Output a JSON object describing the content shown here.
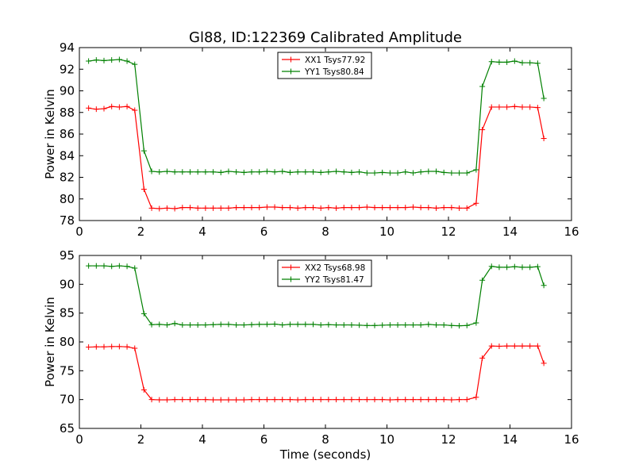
{
  "figure": {
    "title": "Gl88, ID:122369 Calibrated Amplitude",
    "xlabel": "Time (seconds)"
  },
  "chart_data": [
    {
      "type": "line",
      "ylabel": "Power in Kelvin",
      "xlim": [
        0,
        16
      ],
      "ylim": [
        78,
        94
      ],
      "xticks": [
        0,
        2,
        4,
        6,
        8,
        10,
        12,
        14,
        16
      ],
      "yticks": [
        78,
        80,
        82,
        84,
        86,
        88,
        90,
        92,
        94
      ],
      "grid": false,
      "legend": "top-center",
      "x": [
        0.3,
        0.55,
        0.8,
        1.05,
        1.3,
        1.55,
        1.8,
        2.1,
        2.35,
        2.6,
        2.85,
        3.1,
        3.35,
        3.6,
        3.85,
        4.1,
        4.35,
        4.6,
        4.85,
        5.1,
        5.35,
        5.6,
        5.85,
        6.1,
        6.35,
        6.6,
        6.85,
        7.1,
        7.35,
        7.6,
        7.85,
        8.1,
        8.35,
        8.6,
        8.85,
        9.1,
        9.35,
        9.6,
        9.85,
        10.1,
        10.35,
        10.6,
        10.85,
        11.1,
        11.35,
        11.6,
        11.85,
        12.1,
        12.35,
        12.6,
        12.9,
        13.1,
        13.4,
        13.65,
        13.9,
        14.15,
        14.4,
        14.65,
        14.9,
        15.1
      ],
      "series": [
        {
          "name": "XX1 Tsys77.92",
          "color": "#ff0000",
          "values": [
            88.4,
            88.3,
            88.35,
            88.55,
            88.5,
            88.55,
            88.2,
            80.9,
            79.15,
            79.1,
            79.15,
            79.1,
            79.2,
            79.2,
            79.15,
            79.15,
            79.15,
            79.15,
            79.15,
            79.2,
            79.2,
            79.2,
            79.2,
            79.25,
            79.25,
            79.2,
            79.2,
            79.15,
            79.2,
            79.2,
            79.15,
            79.2,
            79.15,
            79.2,
            79.2,
            79.2,
            79.25,
            79.2,
            79.2,
            79.2,
            79.2,
            79.2,
            79.25,
            79.2,
            79.2,
            79.15,
            79.2,
            79.2,
            79.15,
            79.15,
            79.6,
            86.4,
            88.5,
            88.5,
            88.5,
            88.55,
            88.5,
            88.5,
            88.45,
            85.6
          ]
        },
        {
          "name": "YY1 Tsys80.84",
          "color": "#008000",
          "values": [
            92.75,
            92.85,
            92.8,
            92.85,
            92.9,
            92.75,
            92.45,
            84.45,
            82.55,
            82.5,
            82.55,
            82.5,
            82.5,
            82.5,
            82.5,
            82.5,
            82.5,
            82.45,
            82.55,
            82.5,
            82.45,
            82.5,
            82.5,
            82.55,
            82.5,
            82.55,
            82.45,
            82.5,
            82.5,
            82.5,
            82.45,
            82.5,
            82.55,
            82.5,
            82.45,
            82.5,
            82.4,
            82.4,
            82.45,
            82.4,
            82.4,
            82.5,
            82.4,
            82.5,
            82.55,
            82.55,
            82.45,
            82.4,
            82.4,
            82.4,
            82.7,
            90.4,
            92.7,
            92.65,
            92.65,
            92.75,
            92.6,
            92.6,
            92.55,
            89.3
          ]
        }
      ]
    },
    {
      "type": "line",
      "ylabel": "Power in Kelvin",
      "xlabel": "Time (seconds)",
      "xlim": [
        0,
        16
      ],
      "ylim": [
        65,
        95
      ],
      "xticks": [
        0,
        2,
        4,
        6,
        8,
        10,
        12,
        14,
        16
      ],
      "yticks": [
        65,
        70,
        75,
        80,
        85,
        90,
        95
      ],
      "grid": false,
      "legend": "top-center",
      "x": [
        0.3,
        0.55,
        0.8,
        1.05,
        1.3,
        1.55,
        1.8,
        2.1,
        2.35,
        2.6,
        2.85,
        3.1,
        3.35,
        3.6,
        3.85,
        4.1,
        4.35,
        4.6,
        4.85,
        5.1,
        5.35,
        5.6,
        5.85,
        6.1,
        6.35,
        6.6,
        6.85,
        7.1,
        7.35,
        7.6,
        7.85,
        8.1,
        8.35,
        8.6,
        8.85,
        9.1,
        9.35,
        9.6,
        9.85,
        10.1,
        10.35,
        10.6,
        10.85,
        11.1,
        11.35,
        11.6,
        11.85,
        12.1,
        12.35,
        12.6,
        12.9,
        13.1,
        13.4,
        13.65,
        13.9,
        14.15,
        14.4,
        14.65,
        14.9,
        15.1
      ],
      "series": [
        {
          "name": "XX2 Tsys68.98",
          "color": "#ff0000",
          "values": [
            79.1,
            79.15,
            79.15,
            79.2,
            79.2,
            79.15,
            78.9,
            71.7,
            70.0,
            69.95,
            69.95,
            70.0,
            70.0,
            70.0,
            70.0,
            70.0,
            69.95,
            69.95,
            69.95,
            69.95,
            69.95,
            70.0,
            70.0,
            70.0,
            70.0,
            70.0,
            70.0,
            69.95,
            70.0,
            70.0,
            70.0,
            70.0,
            70.0,
            70.0,
            70.0,
            70.0,
            70.0,
            70.0,
            70.0,
            69.95,
            70.0,
            70.0,
            70.0,
            70.0,
            70.0,
            70.0,
            70.0,
            69.95,
            70.0,
            70.0,
            70.4,
            77.2,
            79.3,
            79.25,
            79.3,
            79.3,
            79.3,
            79.3,
            79.3,
            76.3
          ]
        },
        {
          "name": "YY2 Tsys81.47",
          "color": "#008000",
          "values": [
            93.2,
            93.2,
            93.2,
            93.1,
            93.2,
            93.1,
            92.8,
            84.9,
            83.0,
            83.05,
            82.95,
            83.2,
            82.95,
            82.95,
            82.95,
            82.95,
            83.0,
            83.05,
            83.05,
            82.95,
            82.95,
            83.0,
            83.05,
            83.05,
            83.1,
            82.95,
            83.05,
            83.05,
            83.05,
            83.05,
            82.95,
            83.0,
            82.95,
            82.95,
            82.95,
            82.9,
            82.85,
            82.85,
            82.9,
            82.95,
            82.95,
            82.95,
            82.95,
            82.95,
            83.05,
            82.95,
            82.95,
            82.85,
            82.8,
            82.85,
            83.3,
            90.7,
            93.1,
            92.95,
            92.95,
            93.05,
            92.95,
            92.95,
            93.05,
            89.8
          ]
        }
      ]
    }
  ]
}
